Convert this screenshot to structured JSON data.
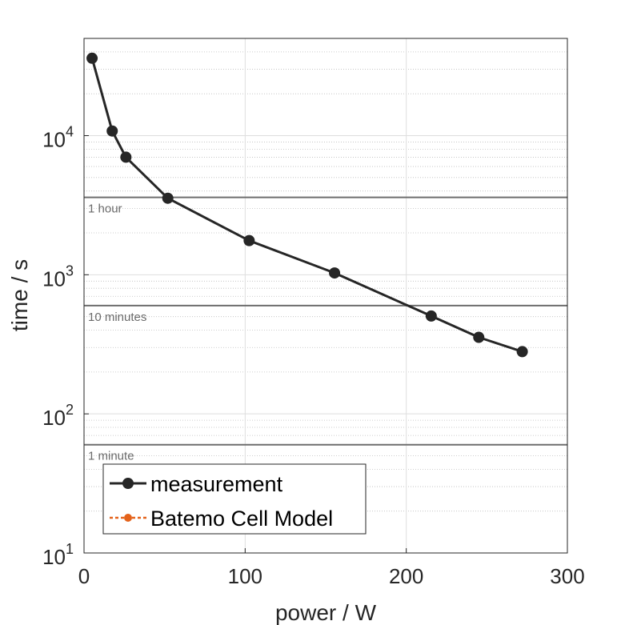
{
  "chart_data": {
    "type": "line",
    "title": "",
    "xlabel": "power / W",
    "ylabel": "time / s",
    "xlim": [
      0,
      300
    ],
    "ylim": [
      10,
      50000
    ],
    "yscale": "log",
    "grid": true,
    "x_ticks": [
      {
        "value": 0,
        "label": "0"
      },
      {
        "value": 100,
        "label": "100"
      },
      {
        "value": 200,
        "label": "200"
      },
      {
        "value": 300,
        "label": "300"
      }
    ],
    "y_ticks": [
      {
        "value": 10,
        "base": "10",
        "exp": "1"
      },
      {
        "value": 100,
        "base": "10",
        "exp": "2"
      },
      {
        "value": 1000,
        "base": "10",
        "exp": "3"
      },
      {
        "value": 10000,
        "base": "10",
        "exp": "4"
      }
    ],
    "reference_lines": [
      {
        "value": 3600,
        "label": "1 hour"
      },
      {
        "value": 600,
        "label": "10 minutes"
      },
      {
        "value": 60,
        "label": "1 minute"
      }
    ],
    "series": [
      {
        "name": "measurement",
        "color": "#262626",
        "x": [
          5,
          17.5,
          26,
          52,
          102.5,
          155.5,
          215.5,
          245,
          272
        ],
        "y": [
          36000,
          10800,
          7000,
          3550,
          1760,
          1030,
          505,
          355,
          280
        ]
      },
      {
        "name": "Batemo Cell Model",
        "color": "#e4621a",
        "x": [],
        "y": []
      }
    ],
    "legend_position": "bottom-left"
  }
}
